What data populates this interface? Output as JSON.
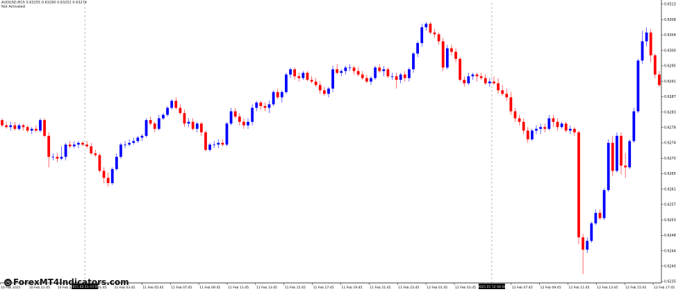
{
  "header": {
    "symbol_line": "AUDUSD,M15  0.63255 0.63290 0.63252 0.63274",
    "status_line": "Not Activated"
  },
  "watermark": {
    "text": "ForexMT4Indicators.com",
    "icon": "clock-icon"
  },
  "colors": {
    "bull": "#0000ff",
    "bear": "#ff0000",
    "separator": "#999999",
    "axis": "#000000"
  },
  "chart_data": {
    "type": "candlestick",
    "symbol": "AUDUSD",
    "timeframe": "M15",
    "ylim": [
      0.6233,
      0.6313
    ],
    "y_ticks": [
      "0.63130",
      "0.63085",
      "0.63040",
      "0.63000",
      "0.62955",
      "0.62915",
      "0.62870",
      "0.62830",
      "0.62785",
      "0.62740",
      "0.62700",
      "0.62655",
      "0.62615",
      "0.62570",
      "0.62530",
      "0.62485",
      "0.62440",
      "0.62400",
      "0.62355"
    ],
    "x_ticks": [
      "10 Feb 2025",
      "10 Feb 21:45",
      "10 Feb 23:45",
      "11 Feb 01:45",
      "11 Feb 03:45",
      "11 Feb 05:45",
      "11 Feb 07:45",
      "11 Feb 09:45",
      "11 Feb 11:45",
      "11 Feb 13:45",
      "11 Feb 15:45",
      "11 Feb 17:45",
      "11 Feb 19:45",
      "11 Feb 21:45",
      "11 Feb 23:45",
      "12 Feb 01:45",
      "12 Feb 03:45",
      "12 Feb 05:45",
      "12 Feb 07:45",
      "12 Feb 09:45",
      "12 Feb 11:45",
      "12 Feb 13:45",
      "12 Feb 15:45",
      "12 Feb 17:45"
    ],
    "day_separators": [
      {
        "candle_index": 20,
        "label": "2025.02.11 00:00"
      },
      {
        "candle_index": 116,
        "label": "2025.02.12 00:00"
      }
    ],
    "candles": [
      [
        0.62795,
        0.628,
        0.62775,
        0.6278
      ],
      [
        0.6278,
        0.6279,
        0.6277,
        0.62775
      ],
      [
        0.62775,
        0.6279,
        0.62765,
        0.6278
      ],
      [
        0.6278,
        0.6279,
        0.62765,
        0.6277
      ],
      [
        0.6277,
        0.62785,
        0.62765,
        0.6278
      ],
      [
        0.6278,
        0.62785,
        0.62765,
        0.62775
      ],
      [
        0.62775,
        0.6278,
        0.6276,
        0.62765
      ],
      [
        0.62765,
        0.62775,
        0.62755,
        0.6277
      ],
      [
        0.6277,
        0.6278,
        0.6276,
        0.62765
      ],
      [
        0.62765,
        0.628,
        0.6276,
        0.62795
      ],
      [
        0.62795,
        0.628,
        0.62745,
        0.6275
      ],
      [
        0.6275,
        0.6276,
        0.6266,
        0.6269
      ],
      [
        0.6269,
        0.627,
        0.6268,
        0.6269
      ],
      [
        0.6269,
        0.627,
        0.62675,
        0.62685
      ],
      [
        0.62685,
        0.6272,
        0.6268,
        0.6269
      ],
      [
        0.6269,
        0.6273,
        0.6268,
        0.62725
      ],
      [
        0.62725,
        0.62735,
        0.62715,
        0.6272
      ],
      [
        0.6272,
        0.62735,
        0.62715,
        0.62725
      ],
      [
        0.62725,
        0.62735,
        0.62715,
        0.6273
      ],
      [
        0.6273,
        0.62735,
        0.6272,
        0.62725
      ],
      [
        0.62725,
        0.62735,
        0.62715,
        0.6272
      ],
      [
        0.6272,
        0.6273,
        0.62695,
        0.627
      ],
      [
        0.627,
        0.6271,
        0.6269,
        0.62695
      ],
      [
        0.62695,
        0.627,
        0.62645,
        0.6265
      ],
      [
        0.6265,
        0.6266,
        0.62615,
        0.6263
      ],
      [
        0.6263,
        0.62645,
        0.62605,
        0.62615
      ],
      [
        0.62615,
        0.6266,
        0.6261,
        0.62655
      ],
      [
        0.62655,
        0.627,
        0.6265,
        0.6269
      ],
      [
        0.6269,
        0.6273,
        0.62685,
        0.62725
      ],
      [
        0.62725,
        0.62735,
        0.62715,
        0.62725
      ],
      [
        0.62725,
        0.6274,
        0.6272,
        0.6273
      ],
      [
        0.6273,
        0.62745,
        0.62725,
        0.62735
      ],
      [
        0.62735,
        0.6275,
        0.6273,
        0.62745
      ],
      [
        0.62745,
        0.62755,
        0.62735,
        0.6275
      ],
      [
        0.6275,
        0.628,
        0.62745,
        0.62795
      ],
      [
        0.62795,
        0.62805,
        0.6278,
        0.62785
      ],
      [
        0.62785,
        0.6279,
        0.6276,
        0.6277
      ],
      [
        0.6277,
        0.6281,
        0.62765,
        0.628
      ],
      [
        0.628,
        0.62815,
        0.62795,
        0.6281
      ],
      [
        0.6281,
        0.62835,
        0.62805,
        0.6283
      ],
      [
        0.6283,
        0.62855,
        0.62825,
        0.6285
      ],
      [
        0.6285,
        0.6286,
        0.62825,
        0.6283
      ],
      [
        0.6283,
        0.6284,
        0.6281,
        0.62815
      ],
      [
        0.62815,
        0.62825,
        0.62775,
        0.62785
      ],
      [
        0.62785,
        0.628,
        0.62775,
        0.6279
      ],
      [
        0.6279,
        0.628,
        0.62765,
        0.6277
      ],
      [
        0.6277,
        0.6279,
        0.6276,
        0.62785
      ],
      [
        0.62785,
        0.6279,
        0.6275,
        0.6276
      ],
      [
        0.6276,
        0.62765,
        0.62705,
        0.6271
      ],
      [
        0.6271,
        0.6273,
        0.62705,
        0.62725
      ],
      [
        0.62725,
        0.62735,
        0.62715,
        0.62725
      ],
      [
        0.62725,
        0.6274,
        0.62715,
        0.6273
      ],
      [
        0.6273,
        0.6274,
        0.6272,
        0.62725
      ],
      [
        0.62725,
        0.6279,
        0.6272,
        0.62785
      ],
      [
        0.62785,
        0.6283,
        0.6278,
        0.6282
      ],
      [
        0.6282,
        0.6283,
        0.628,
        0.62805
      ],
      [
        0.62805,
        0.62815,
        0.6278,
        0.6279
      ],
      [
        0.6279,
        0.628,
        0.6277,
        0.6278
      ],
      [
        0.6278,
        0.628,
        0.6277,
        0.6279
      ],
      [
        0.6279,
        0.6284,
        0.6278,
        0.6283
      ],
      [
        0.6283,
        0.6285,
        0.6282,
        0.62845
      ],
      [
        0.62845,
        0.6285,
        0.62825,
        0.62835
      ],
      [
        0.62835,
        0.62845,
        0.6282,
        0.6283
      ],
      [
        0.6283,
        0.6285,
        0.62815,
        0.6284
      ],
      [
        0.6284,
        0.6288,
        0.62835,
        0.62875
      ],
      [
        0.62875,
        0.62885,
        0.62855,
        0.6286
      ],
      [
        0.6286,
        0.6288,
        0.62845,
        0.62875
      ],
      [
        0.62875,
        0.6293,
        0.6287,
        0.62925
      ],
      [
        0.62925,
        0.62945,
        0.62915,
        0.6294
      ],
      [
        0.6294,
        0.62945,
        0.6291,
        0.6292
      ],
      [
        0.6292,
        0.6293,
        0.62905,
        0.62915
      ],
      [
        0.62915,
        0.62935,
        0.6291,
        0.6293
      ],
      [
        0.6293,
        0.62935,
        0.62905,
        0.6291
      ],
      [
        0.6291,
        0.6292,
        0.629,
        0.62905
      ],
      [
        0.62905,
        0.62915,
        0.6289,
        0.62895
      ],
      [
        0.62895,
        0.62905,
        0.6287,
        0.6288
      ],
      [
        0.6288,
        0.6289,
        0.62865,
        0.6287
      ],
      [
        0.6287,
        0.6289,
        0.6286,
        0.62885
      ],
      [
        0.62885,
        0.6295,
        0.62875,
        0.6294
      ],
      [
        0.6294,
        0.62955,
        0.62925,
        0.6293
      ],
      [
        0.6293,
        0.6294,
        0.6292,
        0.62935
      ],
      [
        0.62935,
        0.6295,
        0.62925,
        0.62945
      ],
      [
        0.62945,
        0.62955,
        0.62935,
        0.62945
      ],
      [
        0.62945,
        0.6295,
        0.62925,
        0.62935
      ],
      [
        0.62935,
        0.62945,
        0.6292,
        0.62925
      ],
      [
        0.62925,
        0.62935,
        0.6291,
        0.62915
      ],
      [
        0.62915,
        0.62925,
        0.629,
        0.62905
      ],
      [
        0.62905,
        0.6292,
        0.62895,
        0.62915
      ],
      [
        0.62915,
        0.6295,
        0.6291,
        0.62945
      ],
      [
        0.62945,
        0.62955,
        0.6293,
        0.62935
      ],
      [
        0.62935,
        0.6295,
        0.6292,
        0.6294
      ],
      [
        0.6294,
        0.62945,
        0.62915,
        0.6292
      ],
      [
        0.6292,
        0.6293,
        0.6291,
        0.6292
      ],
      [
        0.6292,
        0.6293,
        0.62885,
        0.6291
      ],
      [
        0.6291,
        0.6293,
        0.629,
        0.62925
      ],
      [
        0.62925,
        0.62935,
        0.62905,
        0.62915
      ],
      [
        0.62915,
        0.62945,
        0.62905,
        0.6294
      ],
      [
        0.6294,
        0.6299,
        0.6293,
        0.62985
      ],
      [
        0.62985,
        0.6302,
        0.62975,
        0.63015
      ],
      [
        0.63015,
        0.6307,
        0.63005,
        0.6306
      ],
      [
        0.6306,
        0.63075,
        0.6305,
        0.6307
      ],
      [
        0.6307,
        0.63075,
        0.6304,
        0.63045
      ],
      [
        0.63045,
        0.63055,
        0.6303,
        0.6304
      ],
      [
        0.6304,
        0.63045,
        0.6301,
        0.6302
      ],
      [
        0.6302,
        0.6303,
        0.62935,
        0.62945
      ],
      [
        0.62945,
        0.6301,
        0.6294,
        0.63
      ],
      [
        0.63,
        0.6301,
        0.6298,
        0.6299
      ],
      [
        0.6299,
        0.63,
        0.6296,
        0.6297
      ],
      [
        0.6297,
        0.62975,
        0.62905,
        0.6291
      ],
      [
        0.6291,
        0.6292,
        0.6289,
        0.629
      ],
      [
        0.629,
        0.6293,
        0.62895,
        0.6292
      ],
      [
        0.6292,
        0.6293,
        0.6291,
        0.62925
      ],
      [
        0.62925,
        0.6293,
        0.62905,
        0.6292
      ],
      [
        0.6292,
        0.6293,
        0.6291,
        0.62915
      ],
      [
        0.62915,
        0.62925,
        0.62895,
        0.629
      ],
      [
        0.629,
        0.62915,
        0.6289,
        0.62905
      ],
      [
        0.62905,
        0.6292,
        0.62895,
        0.629
      ],
      [
        0.629,
        0.62915,
        0.6287,
        0.6288
      ],
      [
        0.6288,
        0.62895,
        0.62865,
        0.6287
      ],
      [
        0.6287,
        0.62885,
        0.6285,
        0.6286
      ],
      [
        0.6286,
        0.62875,
        0.6281,
        0.6282
      ],
      [
        0.6282,
        0.6283,
        0.6279,
        0.628
      ],
      [
        0.628,
        0.6281,
        0.6278,
        0.6279
      ],
      [
        0.6279,
        0.628,
        0.62755,
        0.62765
      ],
      [
        0.62765,
        0.62775,
        0.6273,
        0.6274
      ],
      [
        0.6274,
        0.6277,
        0.62735,
        0.62765
      ],
      [
        0.62765,
        0.6278,
        0.62755,
        0.6277
      ],
      [
        0.6277,
        0.62785,
        0.62755,
        0.62775
      ],
      [
        0.62775,
        0.62785,
        0.6276,
        0.6277
      ],
      [
        0.6277,
        0.6281,
        0.62765,
        0.628
      ],
      [
        0.628,
        0.6281,
        0.62775,
        0.6279
      ],
      [
        0.6279,
        0.628,
        0.62765,
        0.62775
      ],
      [
        0.62775,
        0.6279,
        0.6277,
        0.62785
      ],
      [
        0.62785,
        0.6279,
        0.6276,
        0.62765
      ],
      [
        0.62765,
        0.6278,
        0.62755,
        0.6277
      ],
      [
        0.6277,
        0.62775,
        0.6275,
        0.6276
      ],
      [
        0.6276,
        0.62765,
        0.6244,
        0.6246
      ],
      [
        0.6246,
        0.6247,
        0.62355,
        0.62425
      ],
      [
        0.62425,
        0.6246,
        0.62415,
        0.6245
      ],
      [
        0.6245,
        0.62505,
        0.62445,
        0.625
      ],
      [
        0.625,
        0.6254,
        0.62495,
        0.6253
      ],
      [
        0.6253,
        0.6254,
        0.6251,
        0.62515
      ],
      [
        0.62515,
        0.626,
        0.6251,
        0.62595
      ],
      [
        0.62595,
        0.6274,
        0.6259,
        0.6273
      ],
      [
        0.6273,
        0.6275,
        0.62635,
        0.6265
      ],
      [
        0.6265,
        0.6276,
        0.62645,
        0.6275
      ],
      [
        0.6275,
        0.6276,
        0.6264,
        0.62665
      ],
      [
        0.62665,
        0.627,
        0.6263,
        0.6266
      ],
      [
        0.6266,
        0.6274,
        0.62655,
        0.62735
      ],
      [
        0.62735,
        0.6283,
        0.6273,
        0.6282
      ],
      [
        0.6282,
        0.6297,
        0.62815,
        0.62965
      ],
      [
        0.62965,
        0.6305,
        0.62955,
        0.6302
      ],
      [
        0.6302,
        0.6306,
        0.63005,
        0.63045
      ],
      [
        0.63045,
        0.63055,
        0.6296,
        0.6298
      ],
      [
        0.6298,
        0.62985,
        0.62915,
        0.62925
      ],
      [
        0.62925,
        0.62935,
        0.6289,
        0.62895
      ]
    ]
  }
}
